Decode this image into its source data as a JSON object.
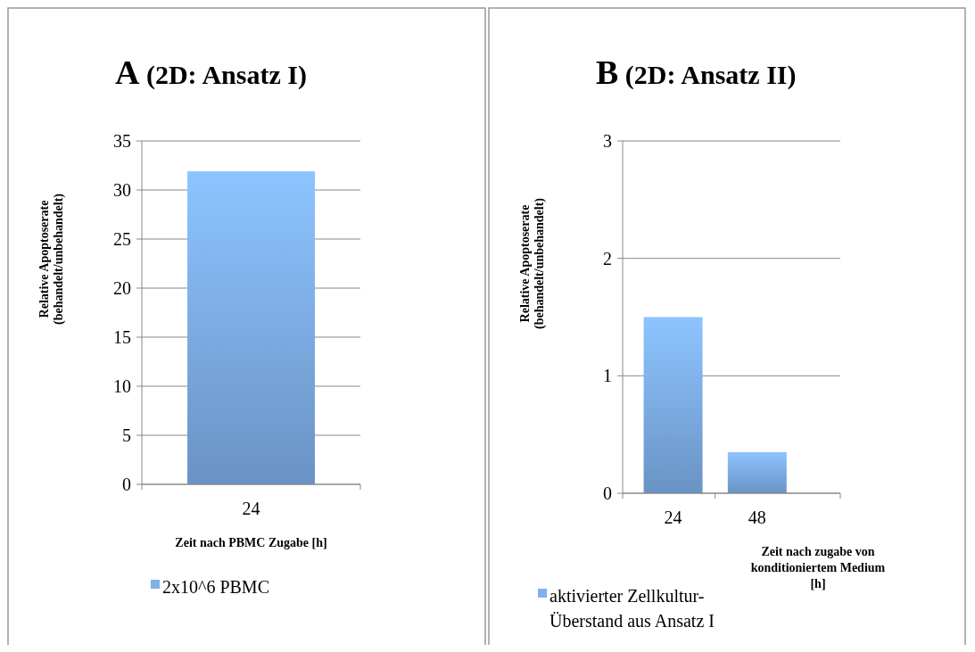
{
  "chart_data": [
    {
      "type": "bar",
      "title": "A (2D: Ansatz I)",
      "ylabel": "Relative Apoptoserate (behandelt/unbehandelt)",
      "xlabel": "Zeit nach PBMC Zugabe [h]",
      "categories": [
        "24"
      ],
      "series": [
        {
          "name": "2x10^6 PBMC",
          "color": "#7fb0ea",
          "values": [
            31.9
          ]
        }
      ],
      "ylim": [
        0,
        35
      ],
      "yticks": [
        0,
        5,
        10,
        15,
        20,
        25,
        30,
        35
      ],
      "grid": "y",
      "legend": "bottom"
    },
    {
      "type": "bar",
      "title": "B (2D: Ansatz II)",
      "ylabel": "Relative Apoptoserate (behandelt/unbehandelt)",
      "xlabel": "Zeit nach zugabe von konditioniertem Medium [h]",
      "categories": [
        "24",
        "48"
      ],
      "series": [
        {
          "name": "aktivierter Zellkultur-Überstand aus Ansatz I",
          "color": "#7fb0ea",
          "values": [
            1.5,
            0.35
          ]
        }
      ],
      "ylim": [
        0,
        3
      ],
      "yticks": [
        0,
        1,
        2,
        3
      ],
      "grid": "y",
      "legend": "bottom"
    }
  ]
}
